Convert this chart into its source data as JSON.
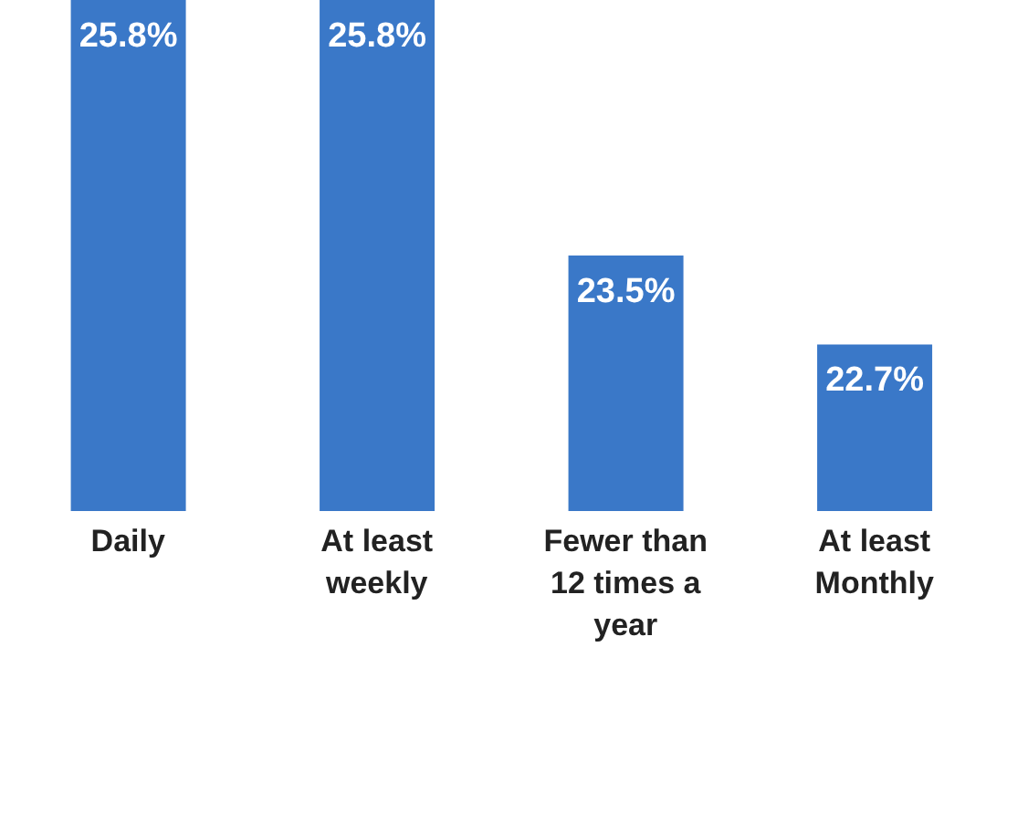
{
  "chart_data": {
    "type": "bar",
    "categories": [
      "Daily",
      "At least weekly",
      "Fewer than 12 times a year",
      "At least Monthly"
    ],
    "values": [
      25.8,
      25.8,
      23.5,
      22.7
    ],
    "color": "#3a78c8",
    "ylim": [
      21.2,
      25.8
    ],
    "tick_labels": "x",
    "data_labels": true,
    "value_labels": [
      "25.8%",
      "25.8%",
      "23.5%",
      "22.7%"
    ]
  }
}
